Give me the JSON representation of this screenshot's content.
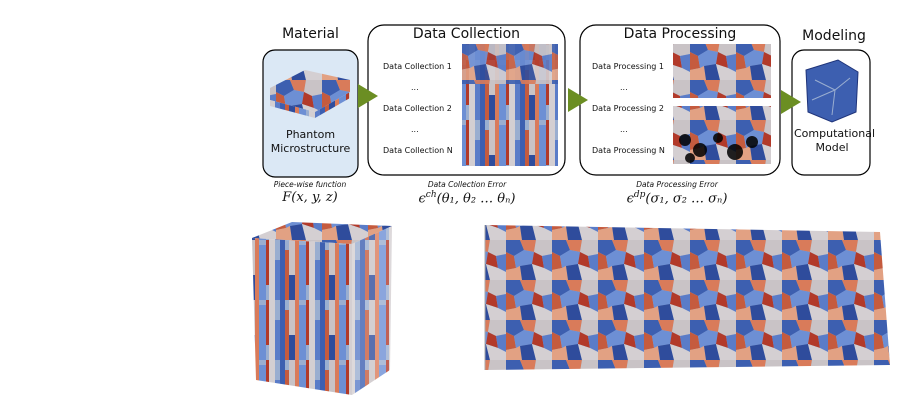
{
  "material": {
    "title": "Material",
    "caption": "Phantom Microstructure"
  },
  "data_collection": {
    "title": "Data Collection",
    "items": [
      "Data Collection 1",
      "...",
      "Data Collection 2",
      "...",
      "Data Collection N"
    ]
  },
  "data_processing": {
    "title": "Data Processing",
    "items": [
      "Data Processing 1",
      "...",
      "Data Processing 2",
      "...",
      "Data Processing N"
    ]
  },
  "modeling": {
    "title": "Modeling",
    "caption": "Computational Model"
  },
  "annotations": [
    {
      "label": "Piece-wise function",
      "base": "F(x, y, z)",
      "sup": "",
      "args": ""
    },
    {
      "label": "Data Collection Error",
      "base": "ϵ",
      "sup": "ch",
      "args": "(θ₁, θ₂ … θₙ)"
    },
    {
      "label": "Data Processing Error",
      "base": "ϵ",
      "sup": "dp",
      "args": "(σ₁, σ₂ … σₙ)"
    }
  ]
}
